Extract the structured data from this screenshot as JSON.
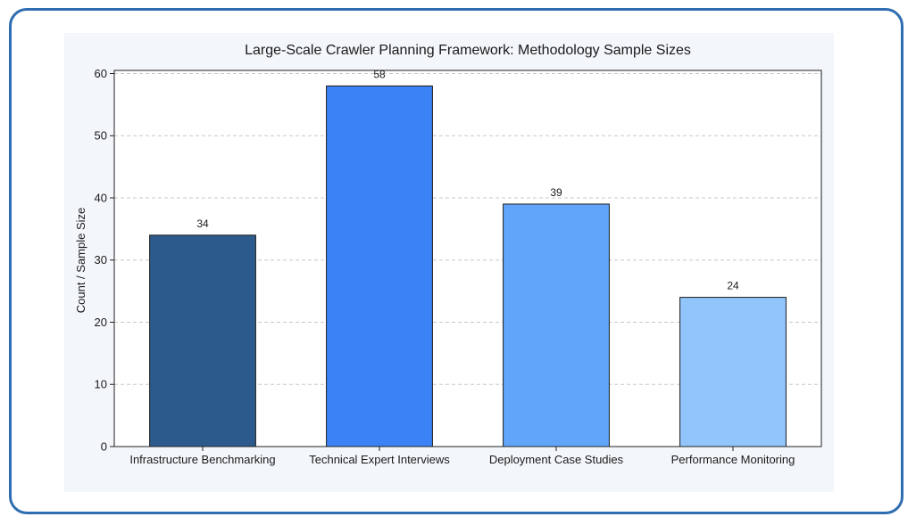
{
  "chart_data": {
    "type": "bar",
    "title": "Large-Scale Crawler Planning Framework: Methodology Sample Sizes",
    "xlabel": "",
    "ylabel": "Count / Sample Size",
    "categories": [
      "Infrastructure Benchmarking",
      "Technical Expert Interviews",
      "Deployment Case Studies",
      "Performance Monitoring"
    ],
    "values": [
      34,
      58,
      39,
      24
    ],
    "colors": [
      "#2d5a8c",
      "#3b82f6",
      "#60a5fa",
      "#93c5fd"
    ],
    "ylim": [
      0,
      60.5
    ],
    "yticks": [
      0,
      10,
      20,
      30,
      40,
      50,
      60
    ],
    "grid": true,
    "data_labels": true
  }
}
